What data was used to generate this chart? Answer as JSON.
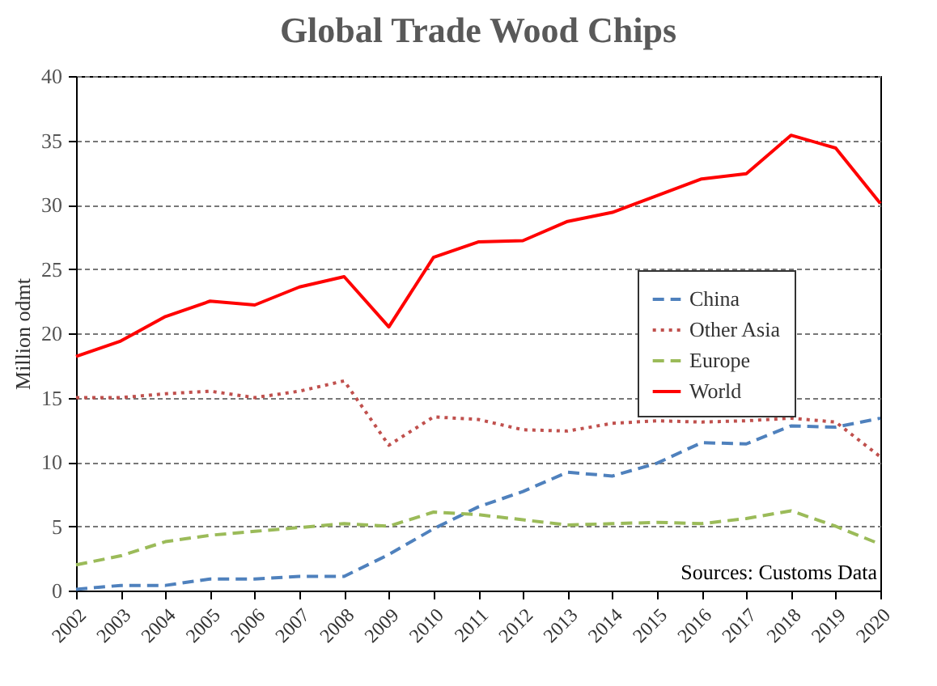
{
  "chart_data": {
    "type": "line",
    "title": "Global Trade Wood Chips",
    "ylabel": "Million odmt",
    "categories": [
      "2002",
      "2003",
      "2004",
      "2005",
      "2006",
      "2007",
      "2008",
      "2009",
      "2010",
      "2011",
      "2012",
      "2013",
      "2014",
      "2015",
      "2016",
      "2017",
      "2018",
      "2019",
      "2020"
    ],
    "series": [
      {
        "name": "China",
        "color": "#4f81bd",
        "line_style": "dashed",
        "values": [
          0.1,
          0.4,
          0.4,
          0.9,
          0.9,
          1.1,
          1.1,
          2.8,
          4.8,
          6.5,
          7.7,
          9.2,
          8.9,
          9.9,
          11.5,
          11.4,
          12.8,
          12.7,
          13.4
        ]
      },
      {
        "name": "Other Asia",
        "color": "#c0504d",
        "line_style": "dotted",
        "values": [
          15,
          15,
          15.3,
          15.5,
          15,
          15.5,
          16.3,
          11.3,
          13.5,
          13.3,
          12.5,
          12.4,
          13,
          13.2,
          13.1,
          13.2,
          13.4,
          13.1,
          10.4
        ]
      },
      {
        "name": "Europe",
        "color": "#9bbb59",
        "line_style": "dashed",
        "values": [
          2,
          2.7,
          3.8,
          4.3,
          4.6,
          4.9,
          5.2,
          5,
          6.1,
          5.9,
          5.5,
          5.1,
          5.2,
          5.3,
          5.2,
          5.6,
          6.2,
          5,
          3.6
        ]
      },
      {
        "name": "World",
        "color": "#ff0000",
        "line_style": "solid",
        "values": [
          18.2,
          19.4,
          21.3,
          22.5,
          22.2,
          23.6,
          24.4,
          20.5,
          25.9,
          27.1,
          27.2,
          28.7,
          29.4,
          30.7,
          32,
          32.4,
          35.4,
          34.4,
          30.1
        ]
      }
    ],
    "ylim": [
      0,
      40
    ],
    "yticks": [
      0,
      5,
      10,
      15,
      20,
      25,
      30,
      35,
      40
    ],
    "grid": "y",
    "legend": "right",
    "marker": "none",
    "annotations": [
      "Sources: Customs Data"
    ]
  }
}
